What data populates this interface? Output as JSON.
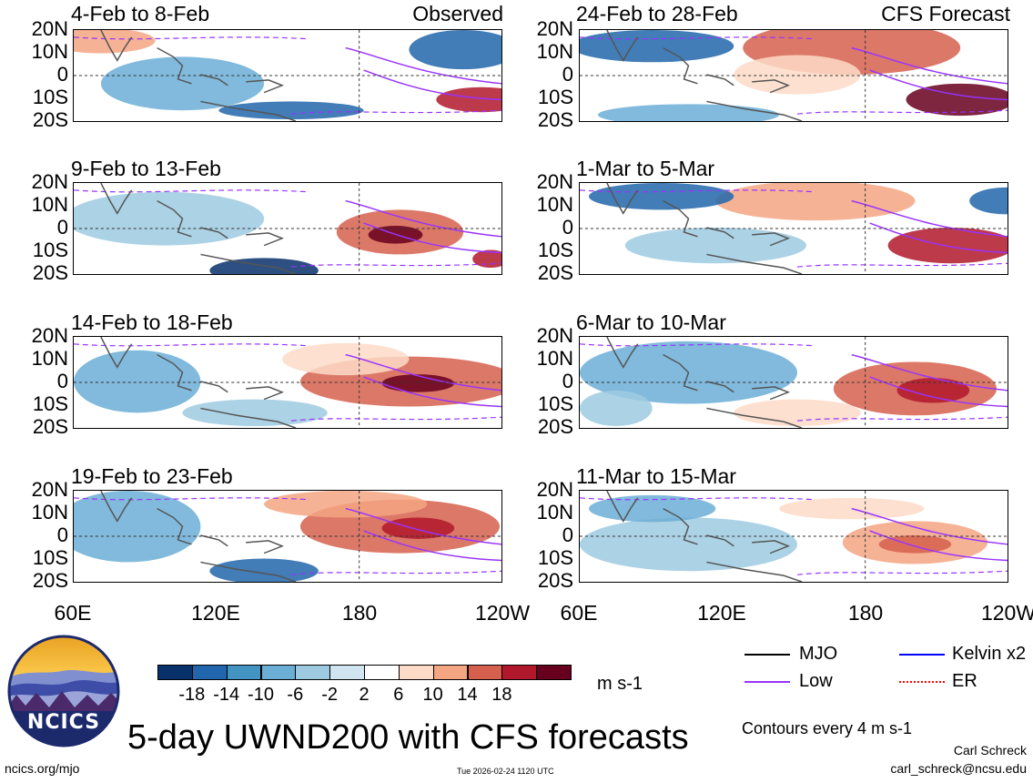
{
  "panels": [
    {
      "title": "4-Feb to 8-Feb",
      "tag": "Observed"
    },
    {
      "title": "24-Feb to 28-Feb",
      "tag": "CFS Forecast"
    },
    {
      "title": "9-Feb to 13-Feb",
      "tag": ""
    },
    {
      "title": "1-Mar to 5-Mar",
      "tag": ""
    },
    {
      "title": "14-Feb to 18-Feb",
      "tag": ""
    },
    {
      "title": "6-Mar to 10-Mar",
      "tag": ""
    },
    {
      "title": "19-Feb to 23-Feb",
      "tag": ""
    },
    {
      "title": "11-Mar to 15-Mar",
      "tag": ""
    }
  ],
  "lat_labels": [
    "20N",
    "10N",
    "0",
    "10S",
    "20S"
  ],
  "lon_labels": [
    "60E",
    "120E",
    "180",
    "120W"
  ],
  "colorbar": {
    "ticks": [
      "-18",
      "-14",
      "-10",
      "-6",
      "-2",
      "2",
      "6",
      "10",
      "14",
      "18"
    ],
    "units": "m s-1",
    "colors": [
      "#08306b",
      "#2166ac",
      "#4393c3",
      "#6baed6",
      "#9ecae1",
      "#d1e5f0",
      "#ffffff",
      "#fddbc7",
      "#f4a582",
      "#d6604d",
      "#b2182b",
      "#67001f"
    ]
  },
  "legend": [
    {
      "label": "MJO",
      "color": "#000000"
    },
    {
      "label": "Kelvin x2",
      "color": "#0000ff"
    },
    {
      "label": "Low",
      "color": "#9933ff"
    },
    {
      "label": "ER",
      "color": "#ff0000"
    }
  ],
  "title": "5-day UWND200 with CFS forecasts",
  "contours_note": "Contours every 4 m s-1",
  "author": "Carl Schreck",
  "email": "carl_schreck@ncsu.edu",
  "url": "ncics.org/mjo",
  "timestamp": "Tue 2026-02-24 1120 UTC",
  "logo_text": "NCICS"
}
